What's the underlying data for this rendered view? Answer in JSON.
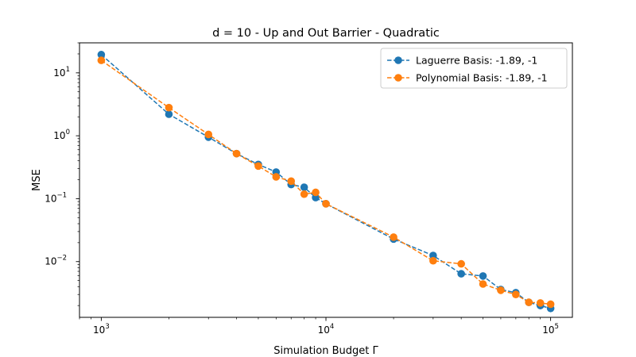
{
  "chart_data": {
    "type": "line",
    "title": "d = 10 - Up and Out Barrier - Quadratic",
    "xlabel": "Simulation Budget Γ",
    "ylabel": "MSE",
    "xscale": "log",
    "yscale": "log",
    "xlim": [
      800,
      125000
    ],
    "ylim": [
      0.0013,
      30
    ],
    "grid": false,
    "legend_position": "top-right",
    "x_ticks": [
      {
        "base": "10",
        "exp": "3"
      },
      {
        "base": "10",
        "exp": "4"
      },
      {
        "base": "10",
        "exp": "5"
      }
    ],
    "y_ticks": [
      {
        "base": "10",
        "exp": "−2"
      },
      {
        "base": "10",
        "exp": "−1"
      },
      {
        "base": "10",
        "exp": "0"
      },
      {
        "base": "10",
        "exp": "1"
      }
    ],
    "series": [
      {
        "name": "Laguerre Basis: -1.89, -1",
        "color": "#1f77b4",
        "x": [
          1000,
          2000,
          3000,
          4000,
          5000,
          6000,
          7000,
          8000,
          9000,
          10000,
          20000,
          30000,
          40000,
          50000,
          60000,
          70000,
          80000,
          90000,
          100000
        ],
        "y": [
          19.5,
          2.2,
          0.95,
          0.52,
          0.35,
          0.265,
          0.168,
          0.152,
          0.104,
          0.083,
          0.0228,
          0.0125,
          0.0064,
          0.0059,
          0.0036,
          0.0032,
          0.00225,
          0.002,
          0.0018
        ]
      },
      {
        "name": "Polynomial Basis: -1.89, -1",
        "color": "#ff7f0e",
        "x": [
          1000,
          2000,
          3000,
          4000,
          5000,
          6000,
          7000,
          8000,
          9000,
          10000,
          20000,
          30000,
          40000,
          50000,
          60000,
          70000,
          80000,
          90000,
          100000
        ],
        "y": [
          15.8,
          2.8,
          1.05,
          0.52,
          0.33,
          0.222,
          0.19,
          0.118,
          0.126,
          0.083,
          0.0245,
          0.0103,
          0.0092,
          0.0044,
          0.0035,
          0.003,
          0.00225,
          0.0022,
          0.0021
        ]
      }
    ]
  }
}
